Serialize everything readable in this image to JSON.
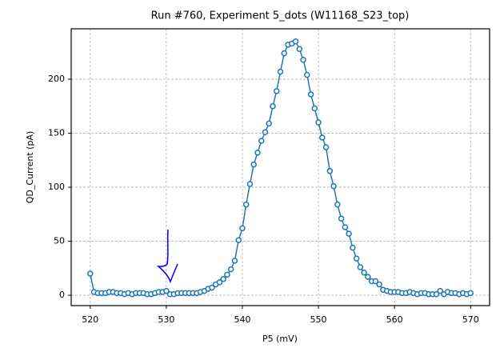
{
  "chart_data": {
    "type": "line",
    "title": "Run #760, Experiment 5_dots (W11168_S23_top)",
    "xlabel": "P5 (mV)",
    "ylabel": "QD_Current (pA)",
    "x": [
      520,
      520.5,
      521,
      521.5,
      522,
      522.5,
      523,
      523.5,
      524,
      524.5,
      525,
      525.5,
      526,
      526.5,
      527,
      527.5,
      528,
      528.5,
      529,
      529.5,
      530,
      530.5,
      531,
      531.5,
      532,
      532.5,
      533,
      533.5,
      534,
      534.5,
      535,
      535.5,
      536,
      536.5,
      537,
      537.5,
      538,
      538.5,
      539,
      539.5,
      540,
      540.5,
      541,
      541.5,
      542,
      542.5,
      543,
      543.5,
      544,
      544.5,
      545,
      545.5,
      546,
      546.5,
      547,
      547.5,
      548,
      548.5,
      549,
      549.5,
      550,
      550.5,
      551,
      551.5,
      552,
      552.5,
      553,
      553.5,
      554,
      554.5,
      555,
      555.5,
      556,
      556.5,
      557,
      557.5,
      558,
      558.5,
      559,
      559.5,
      560,
      560.5,
      561,
      561.5,
      562,
      562.5,
      563,
      563.5,
      564,
      564.5,
      565,
      565.5,
      566,
      566.5,
      567,
      567.5,
      568,
      568.5,
      569,
      569.5,
      570
    ],
    "series": [
      {
        "color": "#1f77b4",
        "values": [
          20,
          3,
          2,
          2,
          2,
          3,
          3,
          2,
          2,
          1,
          2,
          1,
          2,
          2,
          2,
          1,
          1,
          2,
          3,
          3,
          4,
          1,
          1,
          2,
          2,
          2,
          2,
          2,
          2,
          3,
          4,
          6,
          7,
          10,
          12,
          15,
          19,
          24,
          32,
          51,
          62,
          84,
          103,
          121,
          132,
          143,
          151,
          159,
          175,
          189,
          207,
          224,
          232,
          233,
          235,
          228,
          218,
          204,
          186,
          173,
          160,
          146,
          137,
          115,
          101,
          84,
          71,
          63,
          57,
          44,
          34,
          26,
          21,
          17,
          13,
          13,
          10,
          5,
          4,
          3,
          3,
          3,
          2,
          2,
          3,
          2,
          1,
          2,
          2,
          1,
          1,
          1,
          4,
          1,
          3,
          2,
          2,
          1,
          2,
          1,
          2
        ]
      }
    ],
    "xlim": [
      517.5,
      572.5
    ],
    "ylim": [
      -9.6,
      246.7
    ],
    "xticks": [
      520,
      530,
      540,
      550,
      560,
      570
    ],
    "yticks": [
      0,
      50,
      100,
      150,
      200
    ],
    "grid": true
  }
}
